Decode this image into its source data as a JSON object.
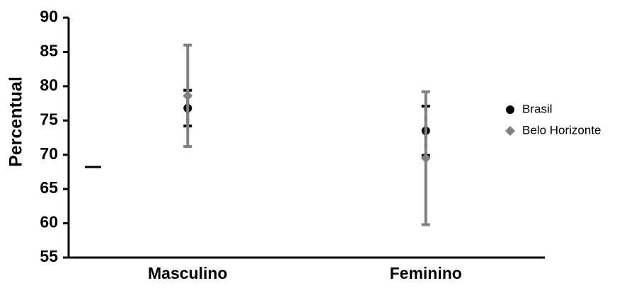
{
  "chart_data": {
    "type": "errorbar",
    "ylabel": "Percentual",
    "categories": [
      "Masculino",
      "Feminino"
    ],
    "series": [
      {
        "name": "Brasil",
        "color": "#000000",
        "marker": "circle",
        "values": [
          76.8,
          73.5
        ],
        "errors": [
          2.6,
          3.6
        ]
      },
      {
        "name": "Belo Horizonte",
        "color": "#808080",
        "marker": "diamond",
        "values": [
          78.6,
          69.5
        ],
        "errors": [
          7.4,
          9.7
        ]
      }
    ],
    "ylim": [
      55,
      90
    ],
    "yticks": [
      55,
      60,
      65,
      70,
      75,
      80,
      85,
      90
    ],
    "legend": "right"
  }
}
